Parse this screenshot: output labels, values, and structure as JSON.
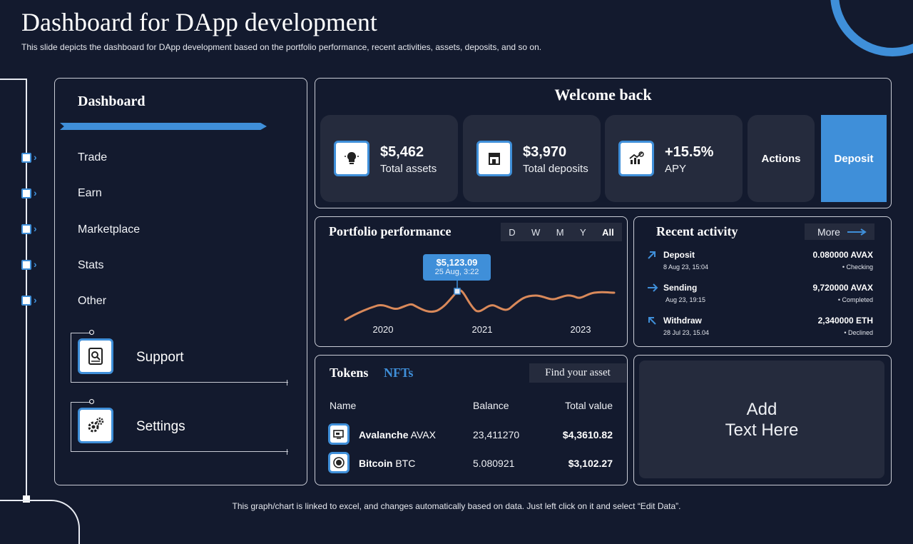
{
  "header": {
    "title": "Dashboard for DApp development",
    "subtitle": "This slide depicts the dashboard for DApp development based on the portfolio performance, recent activities, assets, deposits, and so on."
  },
  "sidebar": {
    "title": "Dashboard",
    "items": [
      {
        "label": "Trade"
      },
      {
        "label": "Earn"
      },
      {
        "label": "Marketplace"
      },
      {
        "label": "Stats"
      },
      {
        "label": "Other"
      }
    ],
    "support_label": "Support",
    "settings_label": "Settings"
  },
  "welcome": {
    "title": "Welcome back",
    "stats": [
      {
        "value": "$5,462",
        "label": "Total assets",
        "icon": "bulb-icon"
      },
      {
        "value": "$3,970",
        "label": "Total deposits",
        "icon": "store-icon"
      },
      {
        "value": "+15.5%",
        "label": "APY",
        "icon": "growth-chart-icon"
      }
    ],
    "actions_label": "Actions",
    "deposit_label": "Deposit"
  },
  "portfolio": {
    "title": "Portfolio performance",
    "timeframes": [
      "D",
      "W",
      "M",
      "Y",
      "All"
    ],
    "active_timeframe": "All",
    "tooltip_value": "$5,123.09",
    "tooltip_date": "25 Aug, 3:22"
  },
  "chart_data": {
    "type": "line",
    "x_ticks": [
      "2020",
      "2021",
      "2023"
    ],
    "series_color": "#d9895a",
    "accent": "#3f8fd9"
  },
  "recent": {
    "title": "Recent activity",
    "more_label": "More",
    "items": [
      {
        "name": "Deposit",
        "date": "8 Aug 23, 15:04",
        "amount": "0.080000 AVAX",
        "status": "Checking",
        "icon": "arrow-up-right-icon"
      },
      {
        "name": "Sending",
        "date": "Aug 23, 19:15",
        "amount": "9,720000 AVAX",
        "status": "Completed",
        "icon": "arrow-right-icon"
      },
      {
        "name": "Withdraw",
        "date": "28 Jul 23, 15.04",
        "amount": "2,340000 ETH",
        "status": "Declined",
        "icon": "arrow-up-left-icon"
      }
    ]
  },
  "tokens": {
    "tab_tokens": "Tokens",
    "tab_nfts": "NFTs",
    "find_label": "Find your asset",
    "columns": [
      "Name",
      "Balance",
      "Total value"
    ],
    "rows": [
      {
        "name": "Avalanche",
        "symbol": "AVAX",
        "balance": "23,411270",
        "value": "$4,3610.82"
      },
      {
        "name": "Bitcoin",
        "symbol": "BTC",
        "balance": "5.080921",
        "value": "$3,102.27"
      }
    ]
  },
  "placeholder": "Add\nText Here",
  "footer": "This graph/chart is linked to excel,  and changes automatically based on data. Just left click on it and select “Edit Data”."
}
